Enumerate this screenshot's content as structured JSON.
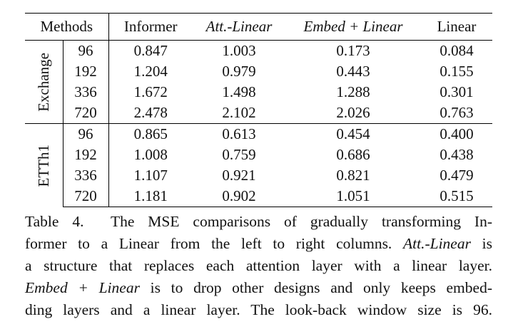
{
  "table": {
    "header": [
      "Methods",
      "Informer",
      "Att.-Linear",
      "Embed + Linear",
      "Linear"
    ],
    "groups": [
      {
        "name": "Exchange",
        "rows": [
          [
            "96",
            "0.847",
            "1.003",
            "0.173",
            "0.084"
          ],
          [
            "192",
            "1.204",
            "0.979",
            "0.443",
            "0.155"
          ],
          [
            "336",
            "1.672",
            "1.498",
            "1.288",
            "0.301"
          ],
          [
            "720",
            "2.478",
            "2.102",
            "2.026",
            "0.763"
          ]
        ]
      },
      {
        "name": "ETTh1",
        "rows": [
          [
            "96",
            "0.865",
            "0.613",
            "0.454",
            "0.400"
          ],
          [
            "192",
            "1.008",
            "0.759",
            "0.686",
            "0.438"
          ],
          [
            "336",
            "1.107",
            "0.921",
            "0.821",
            "0.479"
          ],
          [
            "720",
            "1.181",
            "0.902",
            "1.051",
            "0.515"
          ]
        ]
      }
    ]
  },
  "caption": {
    "lines": [
      [
        "Table 4.  The MSE comparisons of gradually transforming In-"
      ],
      [
        "former to a Linear from the left to right columns. ",
        "Att.-Linear",
        " is"
      ],
      [
        "a structure that replaces each attention layer with a linear layer."
      ],
      [
        "Embed + Linear",
        " is to drop other designs and only keeps embed-"
      ],
      [
        "ding layers and a linear layer. The look-back window size is 96."
      ]
    ]
  }
}
